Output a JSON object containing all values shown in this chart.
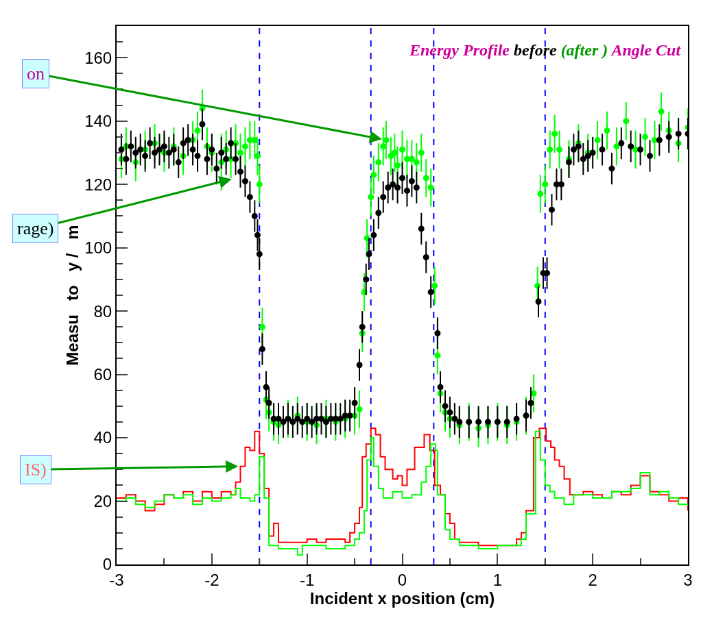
{
  "chart_data": {
    "type": "scatter",
    "title": "Energy Profile before (after ) Angle Cut",
    "xlabel": "Incident x position (cm)",
    "ylabel": "Measu   to   y /   m",
    "xlim": [
      -3,
      3
    ],
    "xticks": [
      -3,
      -2,
      -1,
      0,
      1,
      2,
      3
    ],
    "ylim": [
      0,
      170
    ],
    "yticks": [
      0,
      20,
      40,
      60,
      80,
      100,
      120,
      140,
      160
    ],
    "grid": false,
    "ref_lines": [
      {
        "axis": "x",
        "value": -1.5,
        "color": "#0000ff",
        "line_style": "dashed"
      },
      {
        "axis": "x",
        "value": -0.33,
        "color": "#0000ff",
        "line_style": "dashed"
      },
      {
        "axis": "x",
        "value": 0.33,
        "color": "#0000ff",
        "line_style": "dashed"
      },
      {
        "axis": "x",
        "value": 1.5,
        "color": "#0000ff",
        "line_style": "dashed"
      }
    ],
    "annotations": [
      {
        "text": "on",
        "x": -0.17,
        "y": 134
      },
      {
        "text": "rage)",
        "x": -1.75,
        "y": 122
      },
      {
        "text": "IS)",
        "x": -1.68,
        "y": 31
      }
    ],
    "series": [
      {
        "type": "step",
        "color": "#ff0000",
        "x": [
          -3,
          -2.9,
          -2.8,
          -2.7,
          -2.6,
          -2.5,
          -2.4,
          -2.3,
          -2.2,
          -2.1,
          -2.0,
          -1.9,
          -1.8,
          -1.75,
          -1.7,
          -1.65,
          -1.6,
          -1.55,
          -1.5,
          -1.45,
          -1.4,
          -1.35,
          -1.3,
          -1.2,
          -1.1,
          -1.0,
          -0.9,
          -0.8,
          -0.7,
          -0.6,
          -0.55,
          -0.5,
          -0.45,
          -0.42,
          -0.38,
          -0.33,
          -0.28,
          -0.23,
          -0.18,
          -0.1,
          -0.05,
          0.0,
          0.05,
          0.13,
          0.23,
          0.29,
          0.34,
          0.4,
          0.45,
          0.5,
          0.55,
          0.6,
          0.8,
          1.0,
          1.2,
          1.25,
          1.3,
          1.38,
          1.44,
          1.51,
          1.56,
          1.6,
          1.65,
          1.7,
          1.76,
          1.9,
          2.0,
          2.1,
          2.2,
          2.3,
          2.4,
          2.5,
          2.6,
          2.7,
          2.8,
          2.9,
          3.0
        ],
        "values": [
          21,
          22,
          20,
          17,
          19,
          22,
          21,
          23,
          20,
          23,
          21,
          23,
          22,
          26,
          31,
          37,
          36,
          42,
          35,
          24,
          9,
          13,
          7,
          7,
          7,
          8,
          7,
          8,
          8,
          7,
          10,
          13,
          18,
          34,
          38,
          43,
          41,
          34,
          30,
          27,
          28,
          25,
          30,
          37,
          41,
          36,
          25,
          22,
          16,
          13,
          8,
          7,
          6,
          6,
          8,
          10,
          17,
          40,
          43,
          39,
          37,
          33,
          31,
          27,
          22,
          23,
          22,
          21,
          23,
          22,
          25,
          28,
          23,
          22,
          20,
          21,
          17
        ]
      },
      {
        "type": "step",
        "color": "#00ff00",
        "x": [
          -3,
          -2.9,
          -2.8,
          -2.7,
          -2.6,
          -2.5,
          -2.4,
          -2.3,
          -2.2,
          -2.1,
          -2.0,
          -1.9,
          -1.8,
          -1.75,
          -1.7,
          -1.6,
          -1.55,
          -1.5,
          -1.45,
          -1.4,
          -1.3,
          -1.2,
          -1.1,
          -1.05,
          -0.9,
          -0.8,
          -0.6,
          -0.5,
          -0.45,
          -0.4,
          -0.37,
          -0.33,
          -0.3,
          -0.25,
          -0.2,
          -0.1,
          0.0,
          0.1,
          0.2,
          0.25,
          0.3,
          0.35,
          0.37,
          0.45,
          0.5,
          0.6,
          0.8,
          1.0,
          1.2,
          1.25,
          1.3,
          1.4,
          1.45,
          1.5,
          1.55,
          1.6,
          1.7,
          1.8,
          2.0,
          2.2,
          2.4,
          2.5,
          2.6,
          2.7,
          2.8,
          2.9,
          3.0
        ],
        "values": [
          20,
          21,
          19,
          18,
          20,
          22,
          21,
          22,
          19,
          21,
          20,
          21,
          22,
          24,
          21,
          20,
          22,
          34,
          21,
          6,
          5,
          5,
          3,
          6,
          6,
          5,
          6,
          8,
          10,
          17,
          33,
          40,
          31,
          24,
          21,
          23,
          21,
          22,
          26,
          31,
          38,
          36,
          22,
          11,
          8,
          6,
          5,
          6,
          6,
          8,
          16,
          42,
          33,
          25,
          23,
          21,
          19,
          22,
          21,
          23,
          24,
          29,
          22,
          23,
          21,
          19,
          19
        ]
      },
      {
        "color": "#00ff00",
        "marker": "circle",
        "x": [
          -2.95,
          -2.9,
          -2.8,
          -2.7,
          -2.6,
          -2.5,
          -2.4,
          -2.3,
          -2.2,
          -2.15,
          -2.1,
          -2.05,
          -2.0,
          -1.9,
          -1.85,
          -1.8,
          -1.75,
          -1.7,
          -1.65,
          -1.6,
          -1.55,
          -1.52,
          -1.5,
          -1.47,
          -1.43,
          -1.4,
          -1.35,
          -1.3,
          -1.2,
          -1.1,
          -1.0,
          -0.9,
          -0.8,
          -0.7,
          -0.6,
          -0.5,
          -0.45,
          -0.42,
          -0.4,
          -0.37,
          -0.33,
          -0.3,
          -0.25,
          -0.2,
          -0.17,
          -0.12,
          -0.08,
          -0.05,
          0.0,
          0.05,
          0.1,
          0.15,
          0.2,
          0.25,
          0.3,
          0.34,
          0.37,
          0.4,
          0.45,
          0.5,
          0.6,
          0.7,
          0.8,
          0.9,
          1.0,
          1.1,
          1.2,
          1.3,
          1.38,
          1.42,
          1.45,
          1.5,
          1.55,
          1.6,
          1.65,
          1.75,
          1.85,
          1.95,
          2.05,
          2.15,
          2.25,
          2.35,
          2.45,
          2.55,
          2.65,
          2.72,
          2.8,
          2.9,
          3.0
        ],
        "values": [
          128,
          132,
          127,
          131,
          133,
          130,
          132,
          129,
          134,
          137,
          144,
          132,
          130,
          127,
          131,
          128,
          133,
          130,
          132,
          134,
          134,
          129,
          120,
          75,
          52,
          48,
          45,
          44,
          46,
          47,
          45,
          44,
          46,
          45,
          46,
          47,
          49,
          73,
          86,
          103,
          116,
          123,
          127,
          132,
          134,
          129,
          130,
          126,
          131,
          128,
          128,
          127,
          130,
          122,
          119,
          88,
          66,
          54,
          48,
          46,
          44,
          45,
          43,
          44,
          45,
          44,
          45,
          47,
          54,
          88,
          117,
          120,
          131,
          136,
          131,
          128,
          133,
          130,
          134,
          137,
          132,
          140,
          131,
          135,
          134,
          143,
          137,
          133,
          138
        ],
        "errors": [
          6,
          6,
          6,
          6,
          6,
          6,
          6,
          6,
          6,
          6,
          6,
          6,
          6,
          9,
          6,
          6,
          6,
          6,
          6,
          6,
          6,
          6,
          6,
          6,
          6,
          6,
          6,
          6,
          6,
          6,
          6,
          6,
          6,
          6,
          6,
          6,
          6,
          6,
          6,
          6,
          6,
          6,
          6,
          6,
          6,
          6,
          6,
          6,
          6,
          6,
          6,
          6,
          6,
          6,
          6,
          6,
          6,
          6,
          6,
          6,
          6,
          6,
          6,
          6,
          6,
          6,
          6,
          6,
          6,
          6,
          6,
          6,
          6,
          6,
          6,
          6,
          6,
          6,
          6,
          6,
          6,
          6,
          6,
          6,
          6,
          6,
          6,
          6,
          6
        ]
      },
      {
        "color": "#000000",
        "marker": "circle",
        "x": [
          -2.95,
          -2.9,
          -2.85,
          -2.8,
          -2.75,
          -2.7,
          -2.65,
          -2.6,
          -2.55,
          -2.5,
          -2.45,
          -2.4,
          -2.35,
          -2.3,
          -2.25,
          -2.2,
          -2.15,
          -2.1,
          -2.05,
          -2.0,
          -1.95,
          -1.9,
          -1.85,
          -1.8,
          -1.75,
          -1.7,
          -1.65,
          -1.6,
          -1.55,
          -1.52,
          -1.5,
          -1.47,
          -1.43,
          -1.4,
          -1.35,
          -1.3,
          -1.25,
          -1.2,
          -1.15,
          -1.1,
          -1.05,
          -1.0,
          -0.95,
          -0.9,
          -0.85,
          -0.8,
          -0.75,
          -0.7,
          -0.65,
          -0.6,
          -0.55,
          -0.5,
          -0.45,
          -0.42,
          -0.38,
          -0.35,
          -0.3,
          -0.25,
          -0.2,
          -0.15,
          -0.1,
          -0.05,
          0.0,
          0.05,
          0.1,
          0.15,
          0.2,
          0.25,
          0.3,
          0.37,
          0.4,
          0.45,
          0.5,
          0.55,
          0.6,
          0.7,
          0.8,
          0.9,
          1.0,
          1.1,
          1.2,
          1.3,
          1.35,
          1.43,
          1.48,
          1.52,
          1.57,
          1.62,
          1.67,
          1.75,
          1.8,
          1.85,
          1.9,
          1.95,
          2.0,
          2.1,
          2.2,
          2.3,
          2.4,
          2.5,
          2.6,
          2.7,
          2.8,
          2.9,
          3.0
        ],
        "values": [
          131,
          128,
          132,
          130,
          131,
          129,
          133,
          130,
          131,
          132,
          130,
          131,
          127,
          133,
          134,
          131,
          129,
          139,
          128,
          131,
          125,
          130,
          128,
          133,
          128,
          124,
          121,
          116,
          110,
          104,
          98,
          68,
          56,
          51,
          46,
          46,
          45,
          46,
          45,
          46,
          45,
          46,
          45,
          46,
          46,
          45,
          46,
          46,
          46,
          47,
          47,
          51,
          63,
          75,
          90,
          98,
          104,
          111,
          116,
          119,
          120,
          119,
          122,
          118,
          121,
          119,
          106,
          97,
          86,
          73,
          56,
          50,
          48,
          46,
          45,
          45,
          45,
          45,
          45,
          45,
          46,
          47,
          51,
          83,
          92,
          92,
          112,
          120,
          120,
          127,
          131,
          132,
          128,
          129,
          130,
          131,
          125,
          133,
          132,
          131,
          129,
          134,
          135,
          136,
          136
        ],
        "errors": [
          5,
          5,
          5,
          5,
          5,
          5,
          5,
          5,
          5,
          5,
          5,
          5,
          5,
          5,
          5,
          5,
          5,
          5,
          5,
          5,
          5,
          5,
          5,
          5,
          5,
          5,
          5,
          5,
          5,
          5,
          5,
          5,
          5,
          5,
          5,
          5,
          5,
          5,
          5,
          5,
          5,
          5,
          5,
          5,
          5,
          5,
          5,
          5,
          5,
          5,
          5,
          5,
          5,
          5,
          5,
          5,
          5,
          5,
          5,
          5,
          5,
          5,
          5,
          5,
          5,
          5,
          5,
          5,
          5,
          5,
          5,
          5,
          5,
          5,
          5,
          5,
          5,
          5,
          5,
          5,
          5,
          5,
          5,
          5,
          5,
          5,
          5,
          5,
          5,
          5,
          5,
          5,
          5,
          5,
          5,
          5,
          5,
          5,
          5,
          5,
          5,
          5,
          5,
          5,
          5
        ]
      }
    ]
  }
}
